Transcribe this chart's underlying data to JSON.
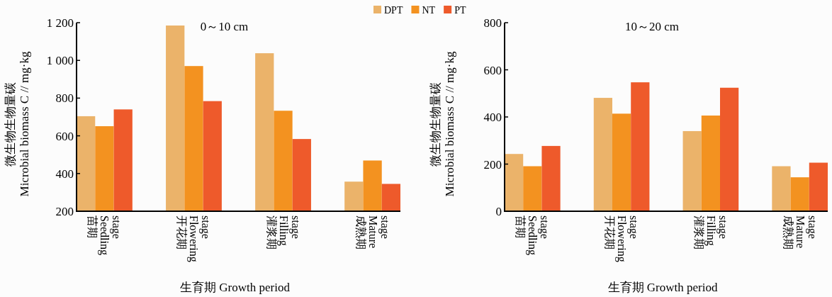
{
  "chart_data": [
    {
      "type": "bar",
      "title": "0～10 cm",
      "xlabel": "生育期 Growth period",
      "ylabel": "微生物生物量碳\nMicrobial biomass C // mg·kg",
      "categories": [
        "苗期\nSeedling\nstage",
        "开花期\nFlowering\nstage",
        "灌浆期\nFilling\nstage",
        "成熟期\nMature\nstage"
      ],
      "series": [
        {
          "name": "DPT",
          "color": "#ebb36a",
          "values": [
            704,
            1185,
            1038,
            357
          ]
        },
        {
          "name": "NT",
          "color": "#f39220",
          "values": [
            651,
            970,
            733,
            469
          ]
        },
        {
          "name": "PT",
          "color": "#ee5a2b",
          "values": [
            740,
            784,
            583,
            345
          ]
        }
      ],
      "ylim": [
        200,
        1200
      ],
      "yticks": [
        200,
        400,
        600,
        800,
        {
          "value": 1000,
          "label": "1 000"
        },
        {
          "value": 1200,
          "label": "1 200"
        }
      ],
      "legend": "top right"
    },
    {
      "type": "bar",
      "title": "10～20 cm",
      "xlabel": "生育期 Growth period",
      "ylabel": "微生物生物量碳\nMicrobial biomass C // mg·kg",
      "categories": [
        "苗期\nSeedling\nstage",
        "开花期\nFlowering\nstage",
        "灌浆期\nFilling\nstage",
        "成熟期\nMature\nstage"
      ],
      "series": [
        {
          "color": "#ebb36a",
          "values": [
            243,
            481,
            340,
            191
          ]
        },
        {
          "color": "#f39220",
          "values": [
            191,
            414,
            406,
            144
          ]
        },
        {
          "color": "#ee5a2b",
          "values": [
            277,
            547,
            524,
            206
          ]
        }
      ],
      "ylim": [
        0,
        800
      ],
      "yticks": [
        0,
        200,
        400,
        600,
        800
      ]
    }
  ]
}
